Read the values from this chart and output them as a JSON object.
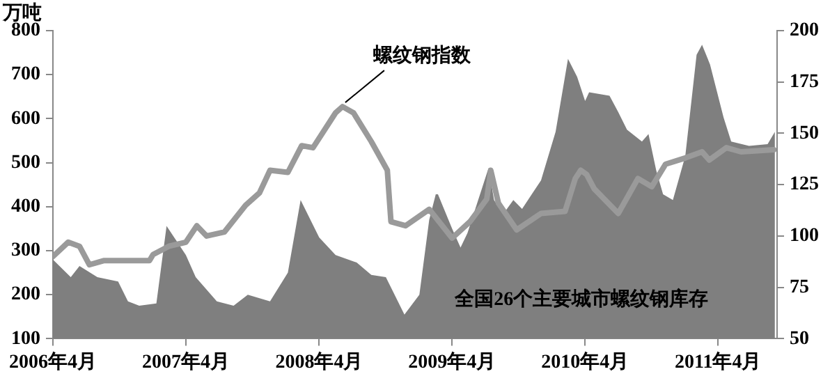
{
  "chart_data": {
    "type": "area",
    "ylabel": "万吨",
    "xlim": [
      "2006-04-01",
      "2011-09-10"
    ],
    "xticks": [
      {
        "value": "2006-04-01",
        "label": "2006年4月"
      },
      {
        "value": "2007-04-01",
        "label": "2007年4月"
      },
      {
        "value": "2008-04-01",
        "label": "2008年4月"
      },
      {
        "value": "2009-04-01",
        "label": "2009年4月"
      },
      {
        "value": "2010-04-01",
        "label": "2010年4月"
      },
      {
        "value": "2011-04-01",
        "label": "2011年4月"
      }
    ],
    "ylim": [
      100,
      800
    ],
    "yticks": [
      100,
      200,
      300,
      400,
      500,
      600,
      700,
      800
    ],
    "y2lim": [
      50,
      200
    ],
    "y2ticks": [
      50,
      75,
      100,
      125,
      150,
      175,
      200
    ],
    "grid": false,
    "legend": false,
    "marker": "none",
    "series": [
      {
        "name": "全国26个主要城市螺纹钢库存",
        "color": "#7f7f7f",
        "x": [
          "2006-04-01",
          "2006-05-20",
          "2006-06-13",
          "2006-08-01",
          "2006-09-27",
          "2006-10-24",
          "2006-11-24",
          "2007-01-10",
          "2007-02-07",
          "2007-04-01",
          "2007-04-28",
          "2007-06-25",
          "2007-08-10",
          "2007-09-18",
          "2007-11-18",
          "2008-01-06",
          "2008-02-10",
          "2008-04-01",
          "2008-05-16",
          "2008-07-13",
          "2008-08-22",
          "2008-10-01",
          "2008-11-21",
          "2009-01-01",
          "2009-01-28",
          "2009-02-15",
          "2009-02-21",
          "2009-04-01",
          "2009-04-24",
          "2009-05-13",
          "2009-07-10",
          "2009-07-25",
          "2009-08-19",
          "2009-09-16",
          "2009-10-10",
          "2009-12-01",
          "2010-01-10",
          "2010-02-13",
          "2010-03-10",
          "2010-04-01",
          "2010-04-12",
          "2010-06-07",
          "2010-07-01",
          "2010-07-25",
          "2010-09-04",
          "2010-09-22",
          "2010-10-13",
          "2010-11-01",
          "2010-11-28",
          "2011-01-01",
          "2011-02-01",
          "2011-02-16",
          "2011-03-10",
          "2011-04-16",
          "2011-05-07",
          "2011-06-25",
          "2011-08-15",
          "2011-09-04"
        ],
        "values": [
          280,
          240,
          265,
          240,
          230,
          185,
          175,
          180,
          356,
          290,
          240,
          185,
          175,
          200,
          185,
          250,
          415,
          330,
          290,
          273,
          245,
          240,
          155,
          200,
          370,
          428,
          428,
          350,
          307,
          340,
          488,
          415,
          383,
          415,
          395,
          460,
          570,
          736,
          695,
          640,
          660,
          652,
          615,
          575,
          548,
          565,
          483,
          428,
          415,
          515,
          745,
          768,
          723,
          603,
          548,
          538,
          542,
          570
        ]
      },
      {
        "name": "螺纹钢指数",
        "type": "line",
        "axis": "y2",
        "color": "#9a9a9a",
        "x": [
          "2006-04-01",
          "2006-05-13",
          "2006-06-13",
          "2006-07-10",
          "2006-08-18",
          "2006-12-22",
          "2007-01-01",
          "2007-02-13",
          "2007-04-01",
          "2007-05-01",
          "2007-05-28",
          "2007-07-16",
          "2007-09-12",
          "2007-10-20",
          "2007-11-18",
          "2008-01-06",
          "2008-02-13",
          "2008-03-15",
          "2008-05-16",
          "2008-06-04",
          "2008-07-04",
          "2008-08-22",
          "2008-10-05",
          "2008-10-15",
          "2008-11-24",
          "2009-01-28",
          "2009-04-01",
          "2009-05-20",
          "2009-07-05",
          "2009-07-16",
          "2009-08-06",
          "2009-09-25",
          "2009-12-01",
          "2010-02-05",
          "2010-03-05",
          "2010-03-20",
          "2010-04-05",
          "2010-04-26",
          "2010-07-01",
          "2010-08-24",
          "2010-10-01",
          "2010-11-08",
          "2011-01-01",
          "2011-02-16",
          "2011-03-08",
          "2011-04-24",
          "2011-06-03",
          "2011-09-01"
        ],
        "values": [
          90,
          97,
          95,
          86,
          88,
          88,
          91,
          95,
          97,
          105,
          100,
          102,
          115,
          121,
          132,
          131,
          144,
          143,
          160,
          163,
          160,
          146,
          132,
          107,
          105,
          113,
          99,
          107,
          118,
          132,
          116,
          103,
          111,
          112,
          128,
          132,
          130,
          123,
          111,
          128,
          124,
          135,
          138,
          141,
          137,
          143,
          141,
          142
        ]
      }
    ]
  }
}
